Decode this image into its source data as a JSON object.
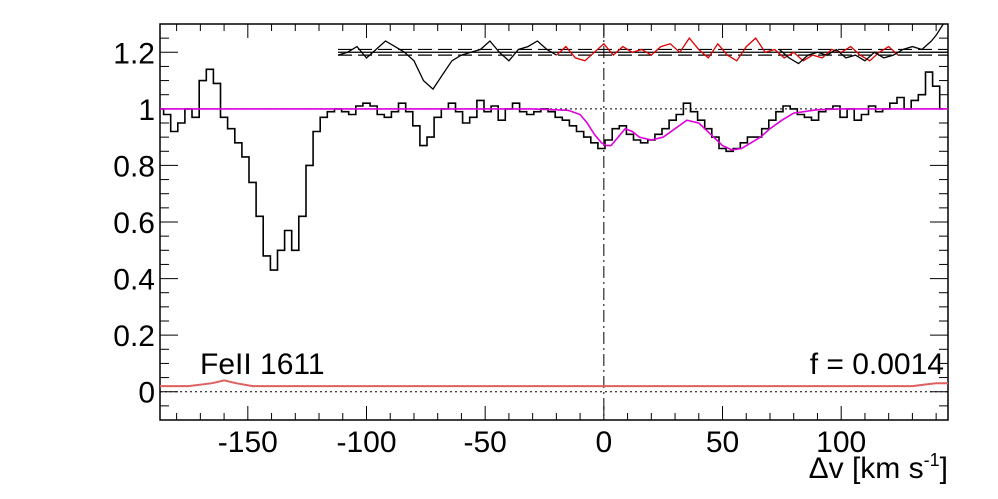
{
  "chart_data": {
    "type": "line",
    "xlim": [
      -187,
      145
    ],
    "ylim": [
      -0.1,
      1.3
    ],
    "x_ticks": [
      -150,
      -100,
      -50,
      0,
      50,
      100
    ],
    "y_ticks": [
      0,
      0.2,
      0.4,
      0.6,
      0.8,
      1,
      1.2
    ],
    "x_tick_labels": [
      "-150",
      "-100",
      "-50",
      "0",
      "50",
      "100"
    ],
    "y_tick_labels": [
      "0",
      "0.2",
      "0.4",
      "0.6",
      "0.8",
      "1",
      "1.2"
    ],
    "xlabel": "Δv [km s",
    "xlabel_sup": "-1",
    "xlabel_close": "]",
    "ion_label": "FeII 1611",
    "f_label": "f = 0.0014",
    "continuum_level": 1.0,
    "zero_level": 0.0,
    "residual_center": 1.2,
    "residual_band": 0.01,
    "vline_x": 0,
    "colors": {
      "data": "#000000",
      "model": "#dd00dd",
      "residual_fit": "#dd0000",
      "error": "#e06060"
    },
    "series": {
      "spectrum": {
        "x": [
          -187,
          -184,
          -181,
          -178,
          -175,
          -172,
          -169,
          -166,
          -163,
          -160,
          -157,
          -154,
          -151,
          -148,
          -145,
          -142,
          -139,
          -136,
          -133,
          -130,
          -127,
          -124,
          -121,
          -118,
          -115,
          -112,
          -109,
          -106,
          -103,
          -100,
          -97,
          -94,
          -91,
          -88,
          -85,
          -82,
          -79,
          -76,
          -73,
          -70,
          -67,
          -64,
          -61,
          -58,
          -55,
          -52,
          -49,
          -46,
          -43,
          -40,
          -37,
          -34,
          -31,
          -28,
          -25,
          -22,
          -19,
          -16,
          -13,
          -10,
          -7,
          -4,
          -1,
          2,
          5,
          8,
          11,
          14,
          17,
          20,
          23,
          26,
          29,
          32,
          35,
          38,
          41,
          44,
          47,
          50,
          53,
          56,
          59,
          62,
          65,
          68,
          71,
          74,
          77,
          80,
          83,
          86,
          89,
          92,
          95,
          98,
          101,
          104,
          107,
          110,
          113,
          116,
          119,
          122,
          125,
          128,
          131,
          134,
          137,
          140,
          143
        ],
        "y": [
          1.0,
          0.98,
          0.92,
          0.95,
          1.0,
          0.97,
          1.1,
          1.14,
          1.09,
          0.97,
          0.93,
          0.88,
          0.83,
          0.74,
          0.62,
          0.48,
          0.43,
          0.5,
          0.57,
          0.5,
          0.62,
          0.8,
          0.92,
          0.97,
          0.99,
          1.0,
          0.99,
          0.98,
          1.01,
          1.02,
          1.01,
          0.98,
          0.97,
          0.99,
          1.02,
          0.99,
          0.94,
          0.87,
          0.9,
          0.97,
          1.0,
          1.02,
          0.99,
          0.95,
          0.97,
          1.03,
          0.99,
          1.01,
          0.96,
          1.0,
          1.02,
          0.99,
          0.98,
          0.99,
          1.0,
          0.99,
          0.97,
          0.96,
          0.94,
          0.92,
          0.9,
          0.88,
          0.86,
          0.89,
          0.93,
          0.94,
          0.91,
          0.89,
          0.88,
          0.89,
          0.91,
          0.93,
          0.96,
          0.98,
          1.02,
          0.99,
          0.96,
          0.93,
          0.9,
          0.86,
          0.85,
          0.86,
          0.88,
          0.9,
          0.9,
          0.93,
          0.96,
          0.99,
          1.01,
          1.0,
          0.98,
          0.97,
          0.96,
          0.99,
          1.0,
          1.01,
          0.97,
          1.0,
          0.96,
          0.98,
          1.01,
          0.99,
          1.0,
          1.02,
          1.04,
          1.0,
          1.03,
          1.05,
          1.13,
          1.08,
          1.0
        ]
      },
      "model": {
        "x": [
          -187,
          -170,
          -150,
          -130,
          -110,
          -90,
          -70,
          -50,
          -30,
          -15,
          -10,
          -7,
          -4,
          -1,
          1,
          3,
          6,
          9,
          12,
          15,
          20,
          25,
          30,
          35,
          40,
          45,
          50,
          54,
          58,
          62,
          66,
          70,
          75,
          80,
          90,
          100,
          120,
          145
        ],
        "y": [
          1.0,
          1.0,
          1.0,
          1.0,
          1.0,
          1.0,
          1.0,
          1.0,
          1.0,
          0.995,
          0.98,
          0.95,
          0.91,
          0.88,
          0.87,
          0.87,
          0.9,
          0.93,
          0.92,
          0.9,
          0.89,
          0.9,
          0.93,
          0.96,
          0.95,
          0.91,
          0.87,
          0.855,
          0.86,
          0.88,
          0.9,
          0.93,
          0.96,
          0.985,
          0.997,
          1.0,
          1.0,
          1.0
        ]
      },
      "residual_outside": {
        "x": [
          -112,
          -108,
          -104,
          -100,
          -96,
          -92,
          -88,
          -84,
          -80,
          -76,
          -72,
          -68,
          -64,
          -60,
          -56,
          -52,
          -48,
          -44,
          -40,
          -36,
          -32,
          -28,
          -24,
          -20,
          140,
          143
        ],
        "y": [
          1.19,
          1.2,
          1.22,
          1.18,
          1.21,
          1.24,
          1.22,
          1.2,
          1.17,
          1.1,
          1.07,
          1.12,
          1.17,
          1.19,
          1.2,
          1.21,
          1.24,
          1.2,
          1.17,
          1.21,
          1.22,
          1.24,
          1.21,
          1.19,
          1.26,
          1.3
        ]
      },
      "residual_fit_region": {
        "x": [
          -20,
          -16,
          -12,
          -8,
          -4,
          0,
          4,
          8,
          12,
          16,
          20,
          24,
          28,
          32,
          36,
          40,
          44,
          48,
          52,
          56,
          60,
          64,
          68,
          72,
          76,
          80,
          84,
          88,
          92,
          96,
          100,
          104,
          108,
          112,
          116,
          120,
          124
        ],
        "y": [
          1.19,
          1.22,
          1.18,
          1.17,
          1.2,
          1.23,
          1.19,
          1.22,
          1.2,
          1.21,
          1.19,
          1.22,
          1.23,
          1.2,
          1.25,
          1.21,
          1.18,
          1.23,
          1.19,
          1.17,
          1.22,
          1.25,
          1.2,
          1.21,
          1.18,
          1.2,
          1.17,
          1.19,
          1.18,
          1.21,
          1.2,
          1.22,
          1.19,
          1.17,
          1.2,
          1.22,
          1.19
        ]
      },
      "residual_black_tail": {
        "x": [
          74,
          78,
          82,
          86,
          90,
          94,
          98,
          102,
          106,
          110,
          114,
          118,
          122,
          126,
          130,
          134,
          138
        ],
        "y": [
          1.21,
          1.18,
          1.16,
          1.19,
          1.2,
          1.19,
          1.21,
          1.18,
          1.19,
          1.17,
          1.2,
          1.18,
          1.19,
          1.21,
          1.22,
          1.21,
          1.24
        ]
      },
      "error": {
        "x": [
          -187,
          -175,
          -165,
          -160,
          -155,
          -148,
          -140,
          -120,
          -100,
          -80,
          -60,
          -40,
          -20,
          0,
          20,
          40,
          60,
          80,
          100,
          120,
          130,
          135,
          140,
          145
        ],
        "y": [
          0.02,
          0.02,
          0.03,
          0.04,
          0.03,
          0.02,
          0.02,
          0.02,
          0.02,
          0.02,
          0.02,
          0.02,
          0.02,
          0.02,
          0.02,
          0.02,
          0.02,
          0.02,
          0.02,
          0.02,
          0.02,
          0.025,
          0.03,
          0.03
        ]
      }
    }
  }
}
